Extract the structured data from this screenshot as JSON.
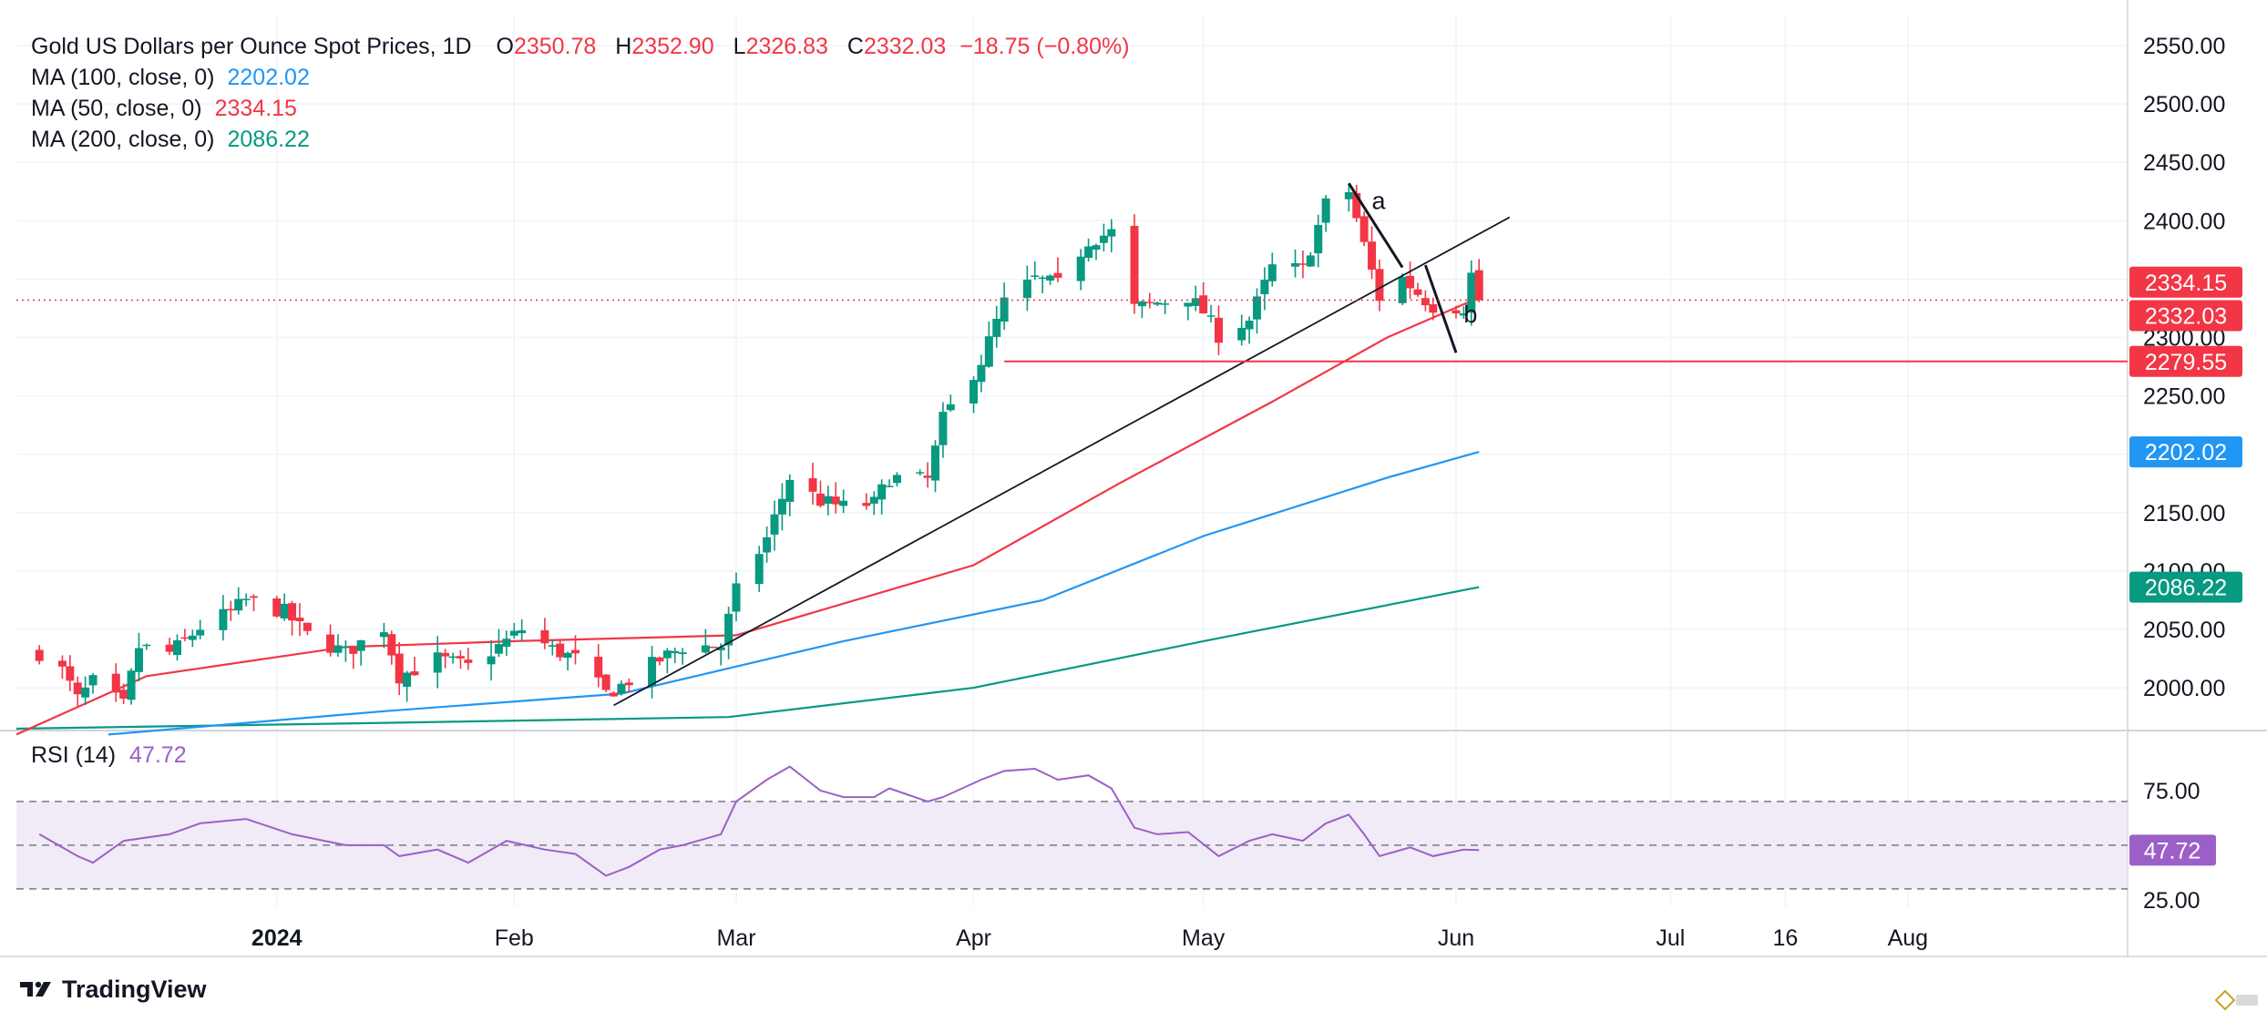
{
  "legend": {
    "title": "Gold US Dollars per Ounce Spot Prices, 1D",
    "open_k": "O",
    "open": "2350.78",
    "high_k": "H",
    "high": "2352.90",
    "low_k": "L",
    "low": "2326.83",
    "close_k": "C",
    "close": "2332.03",
    "change": "−18.75 (−0.80%)",
    "ma100_label": "MA (100, close, 0)",
    "ma100_value": "2202.02",
    "ma50_label": "MA (50, close, 0)",
    "ma50_value": "2334.15",
    "ma200_label": "MA (200, close, 0)",
    "ma200_value": "2086.22"
  },
  "rsi_legend": {
    "label": "RSI (14)",
    "value": "47.72"
  },
  "brand": {
    "name": "TradingView"
  },
  "chart_data": {
    "type": "candlestick",
    "title": "Gold US Dollars per Ounce Spot Prices, 1D",
    "ylim": [
      1965,
      2575
    ],
    "y_ticks": [
      "2000.00",
      "2050.00",
      "2100.00",
      "2150.00",
      "2200.00",
      "2250.00",
      "2300.00",
      "2350.00",
      "2400.00",
      "2450.00",
      "2500.00",
      "2550.00"
    ],
    "x_ticks": [
      "2024",
      "Feb",
      "Mar",
      "Apr",
      "May",
      "Jun",
      "Jul",
      "16",
      "Aug"
    ],
    "grid": true,
    "colors": {
      "up": "#089981",
      "down": "#f23645",
      "ma50": "#f23645",
      "ma100": "#2196f3",
      "ma200": "#089981",
      "rsi": "#9c5fc7",
      "trend": "#131722"
    },
    "candle_anchors": [
      [
        "2023-12-01",
        2030
      ],
      [
        "2023-12-04",
        2015
      ],
      [
        "2023-12-06",
        1990
      ],
      [
        "2023-12-08",
        2005
      ],
      [
        "2023-12-12",
        1985
      ],
      [
        "2023-12-14",
        2035
      ],
      [
        "2023-12-18",
        2030
      ],
      [
        "2023-12-20",
        2040
      ],
      [
        "2023-12-22",
        2052
      ],
      [
        "2023-12-26",
        2065
      ],
      [
        "2023-12-28",
        2075
      ],
      [
        "2024-01-02",
        2065
      ],
      [
        "2024-01-05",
        2045
      ],
      [
        "2024-01-10",
        2030
      ],
      [
        "2024-01-15",
        2052
      ],
      [
        "2024-01-17",
        2010
      ],
      [
        "2024-01-22",
        2025
      ],
      [
        "2024-01-26",
        2018
      ],
      [
        "2024-01-31",
        2040
      ],
      [
        "2024-02-02",
        2050
      ],
      [
        "2024-02-06",
        2033
      ],
      [
        "2024-02-09",
        2025
      ],
      [
        "2024-02-13",
        1995
      ],
      [
        "2024-02-15",
        2002
      ],
      [
        "2024-02-20",
        2024
      ],
      [
        "2024-02-23",
        2035
      ],
      [
        "2024-02-28",
        2036
      ],
      [
        "2024-03-01",
        2083
      ],
      [
        "2024-03-05",
        2128
      ],
      [
        "2024-03-08",
        2180
      ],
      [
        "2024-03-12",
        2160
      ],
      [
        "2024-03-15",
        2155
      ],
      [
        "2024-03-19",
        2158
      ],
      [
        "2024-03-21",
        2180
      ],
      [
        "2024-03-26",
        2178
      ],
      [
        "2024-03-28",
        2230
      ],
      [
        "2024-04-02",
        2280
      ],
      [
        "2024-04-05",
        2330
      ],
      [
        "2024-04-09",
        2350
      ],
      [
        "2024-04-12",
        2345
      ],
      [
        "2024-04-16",
        2383
      ],
      [
        "2024-04-19",
        2390
      ],
      [
        "2024-04-22",
        2325
      ],
      [
        "2024-04-25",
        2330
      ],
      [
        "2024-04-29",
        2335
      ],
      [
        "2024-05-01",
        2322
      ],
      [
        "2024-05-03",
        2302
      ],
      [
        "2024-05-07",
        2315
      ],
      [
        "2024-05-10",
        2360
      ],
      [
        "2024-05-14",
        2358
      ],
      [
        "2024-05-17",
        2414
      ],
      [
        "2024-05-20",
        2425
      ],
      [
        "2024-05-22",
        2379
      ],
      [
        "2024-05-24",
        2334
      ],
      [
        "2024-05-27",
        2351
      ],
      [
        "2024-05-29",
        2338
      ],
      [
        "2024-05-31",
        2327
      ],
      [
        "2024-06-04",
        2326
      ],
      [
        "2024-06-05",
        2354
      ],
      [
        "2024-06-06",
        2332.03
      ]
    ],
    "ma50_anchors": [
      [
        "2023-11-28",
        1960
      ],
      [
        "2023-12-15",
        2010
      ],
      [
        "2024-01-10",
        2035
      ],
      [
        "2024-02-01",
        2040
      ],
      [
        "2024-03-01",
        2045
      ],
      [
        "2024-04-01",
        2105
      ],
      [
        "2024-04-20",
        2175
      ],
      [
        "2024-05-10",
        2245
      ],
      [
        "2024-05-25",
        2300
      ],
      [
        "2024-06-06",
        2334.15
      ]
    ],
    "ma100_anchors": [
      [
        "2023-12-10",
        1960
      ],
      [
        "2024-01-15",
        1980
      ],
      [
        "2024-02-15",
        1995
      ],
      [
        "2024-03-15",
        2040
      ],
      [
        "2024-04-10",
        2075
      ],
      [
        "2024-05-01",
        2130
      ],
      [
        "2024-05-25",
        2180
      ],
      [
        "2024-06-06",
        2202.02
      ]
    ],
    "ma200_anchors": [
      [
        "2023-11-28",
        1965
      ],
      [
        "2024-01-15",
        1970
      ],
      [
        "2024-02-29",
        1975
      ],
      [
        "2024-04-01",
        2000
      ],
      [
        "2024-05-01",
        2040
      ],
      [
        "2024-06-06",
        2086.22
      ]
    ],
    "trendline": [
      [
        "2024-02-14",
        1985
      ],
      [
        "2024-06-10",
        2403
      ]
    ],
    "abc_lines": [
      [
        [
          "2024-05-20",
          2432
        ],
        [
          "2024-05-27",
          2360
        ]
      ],
      [
        [
          "2024-05-30",
          2362
        ],
        [
          "2024-06-03",
          2287
        ]
      ]
    ],
    "annotations": [
      {
        "text": "a",
        "date": "2024-05-23",
        "price": 2410
      },
      {
        "text": "b",
        "date": "2024-06-04",
        "price": 2313
      }
    ],
    "support_line": {
      "from": "2024-04-05",
      "price": 2279.55
    },
    "current_price_line": 2332.03,
    "price_labels": [
      {
        "text": "2334.15",
        "price": 2334.15,
        "color": "#f23645",
        "text_color": "#ffffff"
      },
      {
        "text": "2332.03",
        "price": 2332.03,
        "color": "#f23645",
        "text_color": "#ffffff"
      },
      {
        "text": "2279.55",
        "price": 2279.55,
        "color": "#f23645",
        "text_color": "#ffffff"
      },
      {
        "text": "2202.02",
        "price": 2202.02,
        "color": "#2196f3",
        "text_color": "#ffffff"
      },
      {
        "text": "2086.22",
        "price": 2086.22,
        "color": "#089981",
        "text_color": "#ffffff"
      }
    ],
    "rsi": {
      "label": "RSI (14)",
      "value": 47.72,
      "ylim": [
        22,
        95
      ],
      "y_ticks": [
        "25.00",
        "75.00"
      ],
      "levels": [
        30,
        50,
        70
      ],
      "anchors": [
        [
          "2023-12-01",
          55
        ],
        [
          "2023-12-06",
          45
        ],
        [
          "2023-12-08",
          42
        ],
        [
          "2023-12-12",
          52
        ],
        [
          "2023-12-18",
          55
        ],
        [
          "2023-12-22",
          60
        ],
        [
          "2023-12-28",
          62
        ],
        [
          "2024-01-03",
          55
        ],
        [
          "2024-01-10",
          50
        ],
        [
          "2024-01-15",
          50
        ],
        [
          "2024-01-17",
          45
        ],
        [
          "2024-01-22",
          48
        ],
        [
          "2024-01-26",
          42
        ],
        [
          "2024-01-31",
          52
        ],
        [
          "2024-02-05",
          48
        ],
        [
          "2024-02-09",
          46
        ],
        [
          "2024-02-13",
          36
        ],
        [
          "2024-02-16",
          40
        ],
        [
          "2024-02-20",
          48
        ],
        [
          "2024-02-23",
          50
        ],
        [
          "2024-02-28",
          55
        ],
        [
          "2024-03-01",
          70
        ],
        [
          "2024-03-05",
          80
        ],
        [
          "2024-03-08",
          86
        ],
        [
          "2024-03-12",
          75
        ],
        [
          "2024-03-15",
          72
        ],
        [
          "2024-03-19",
          72
        ],
        [
          "2024-03-21",
          76
        ],
        [
          "2024-03-26",
          70
        ],
        [
          "2024-03-28",
          72
        ],
        [
          "2024-04-02",
          80
        ],
        [
          "2024-04-05",
          84
        ],
        [
          "2024-04-09",
          85
        ],
        [
          "2024-04-12",
          80
        ],
        [
          "2024-04-16",
          82
        ],
        [
          "2024-04-19",
          76
        ],
        [
          "2024-04-22",
          58
        ],
        [
          "2024-04-25",
          55
        ],
        [
          "2024-04-29",
          56
        ],
        [
          "2024-05-03",
          45
        ],
        [
          "2024-05-07",
          52
        ],
        [
          "2024-05-10",
          55
        ],
        [
          "2024-05-14",
          52
        ],
        [
          "2024-05-17",
          60
        ],
        [
          "2024-05-20",
          64
        ],
        [
          "2024-05-22",
          55
        ],
        [
          "2024-05-24",
          45
        ],
        [
          "2024-05-28",
          49
        ],
        [
          "2024-05-31",
          45
        ],
        [
          "2024-06-04",
          48
        ],
        [
          "2024-06-06",
          47.72
        ]
      ]
    }
  }
}
